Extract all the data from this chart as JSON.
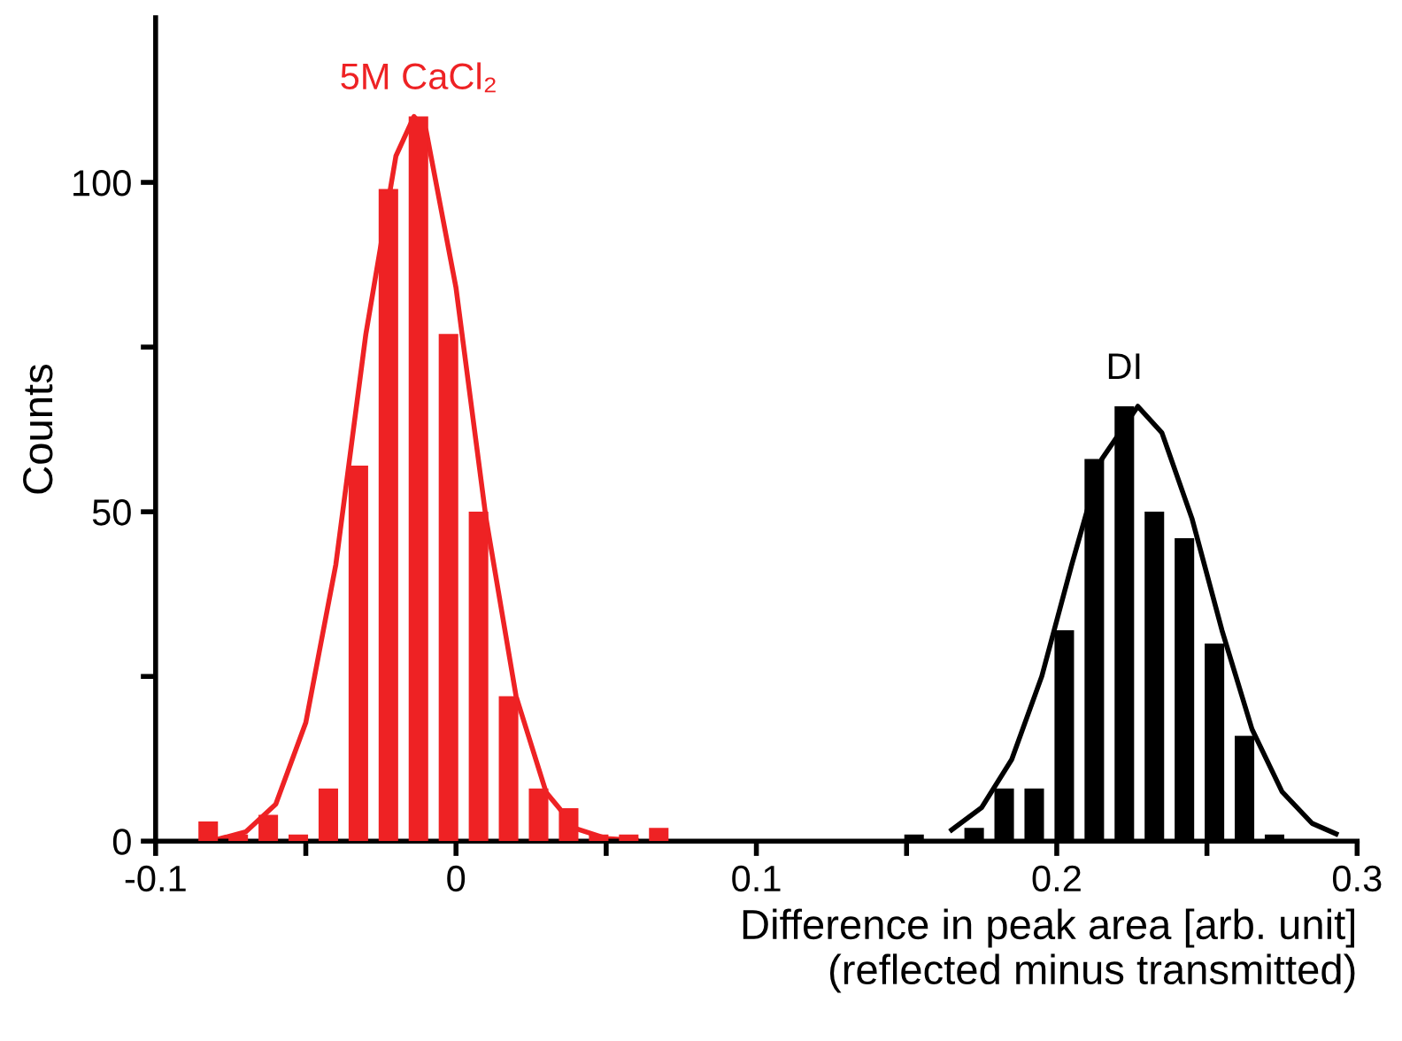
{
  "chart_data": {
    "type": "histogram",
    "xlabel": "Difference in peak area [arb. unit]\n(reflected minus transmitted)",
    "ylabel": "Counts",
    "xlim": [
      -0.1,
      0.3
    ],
    "xticks": [
      -0.1,
      {
        "value": -0.05,
        "label": null
      },
      0,
      {
        "value": 0.05,
        "label": null
      },
      0.1,
      {
        "value": 0.15,
        "label": null
      },
      0.2,
      {
        "value": 0.25,
        "label": null
      },
      0.3
    ],
    "ylim": [
      0,
      125
    ],
    "yticks": [
      0,
      {
        "value": 25,
        "label": null
      },
      50,
      {
        "value": 75,
        "label": null
      },
      100
    ],
    "grid": false,
    "legend": false,
    "series": [
      {
        "name": "5M CaCl₂",
        "color": "#ee2224",
        "bins": [
          -0.0875,
          -0.0775,
          -0.0675,
          -0.0575,
          -0.0475,
          -0.0375,
          -0.0275,
          -0.0175,
          -0.0075,
          0.0025,
          0.0125,
          0.0225,
          0.0325,
          0.0425,
          0.0525,
          0.0625,
          0.0725
        ],
        "values": [
          3,
          1,
          4,
          1,
          8,
          57,
          99,
          110,
          77,
          50,
          22,
          8,
          5,
          1,
          1,
          2
        ]
      },
      {
        "type": "line",
        "color": "#ee2224",
        "x": [
          -0.08,
          -0.07,
          -0.06,
          -0.05,
          -0.04,
          -0.03,
          -0.02,
          -0.014,
          -0.01,
          0,
          0.01,
          0.02,
          0.03,
          0.04,
          0.05,
          0.06
        ],
        "values": [
          0.2,
          1.4,
          5.6,
          18,
          42,
          77,
          104,
          110,
          108,
          84,
          49,
          22,
          7.4,
          1.9,
          0.4,
          0.1
        ]
      },
      {
        "name": "DI",
        "color": "#000000",
        "bins": [
          0.1475,
          0.1575,
          0.1675,
          0.1775,
          0.1875,
          0.1975,
          0.2075,
          0.2175,
          0.2275,
          0.2375,
          0.2475,
          0.2575,
          0.2675,
          0.2775
        ],
        "values": [
          1,
          0,
          2,
          8,
          8,
          32,
          58,
          66,
          50,
          46,
          30,
          16,
          1
        ]
      },
      {
        "type": "line",
        "color": "#000000",
        "x": [
          0.165,
          0.175,
          0.185,
          0.195,
          0.205,
          0.215,
          0.227,
          0.235,
          0.245,
          0.255,
          0.265,
          0.275,
          0.285,
          0.293
        ],
        "values": [
          1.7,
          5.1,
          12.4,
          25,
          42,
          58,
          66,
          62,
          49,
          32,
          17,
          7.5,
          2.7,
          1.1
        ]
      }
    ]
  }
}
